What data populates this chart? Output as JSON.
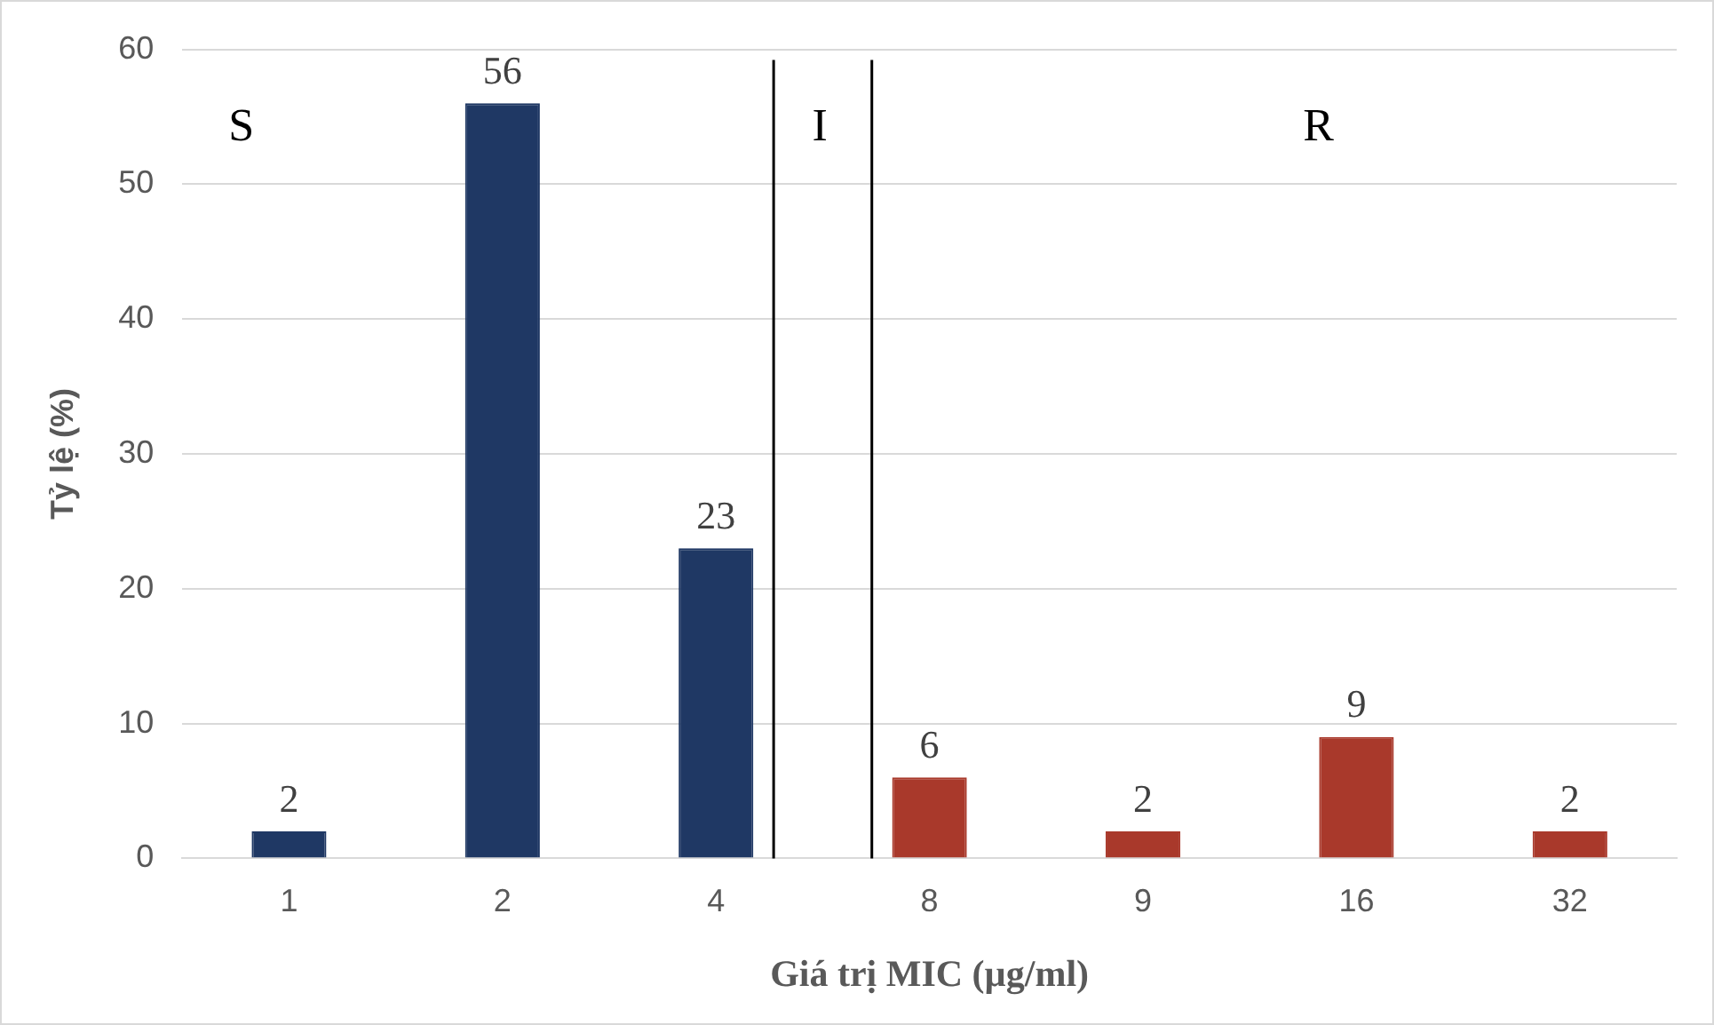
{
  "chart_data": {
    "type": "bar",
    "xlabel": "Giá trị MIC (µg/ml)",
    "ylabel": "Tỷ lệ (%)",
    "categories": [
      "1",
      "2",
      "4",
      "8",
      "9",
      "16",
      "32"
    ],
    "values": [
      2,
      56,
      23,
      6,
      2,
      9,
      2
    ],
    "colors": [
      "#1f3864",
      "#1f3864",
      "#1f3864",
      "#a9392b",
      "#a9392b",
      "#a9392b",
      "#a9392b"
    ],
    "ylim": [
      0,
      60
    ],
    "yticks": [
      0,
      10,
      20,
      30,
      40,
      50,
      60
    ],
    "grid": "y",
    "legend": false,
    "data_labels": true,
    "ref_lines": [
      {
        "axis": "x",
        "value": "4",
        "color": "#000000",
        "line_style": "solid"
      },
      {
        "axis": "x",
        "value": "8",
        "color": "#000000",
        "line_style": "solid"
      }
    ],
    "annotations": [
      "S",
      "I",
      "R"
    ]
  }
}
